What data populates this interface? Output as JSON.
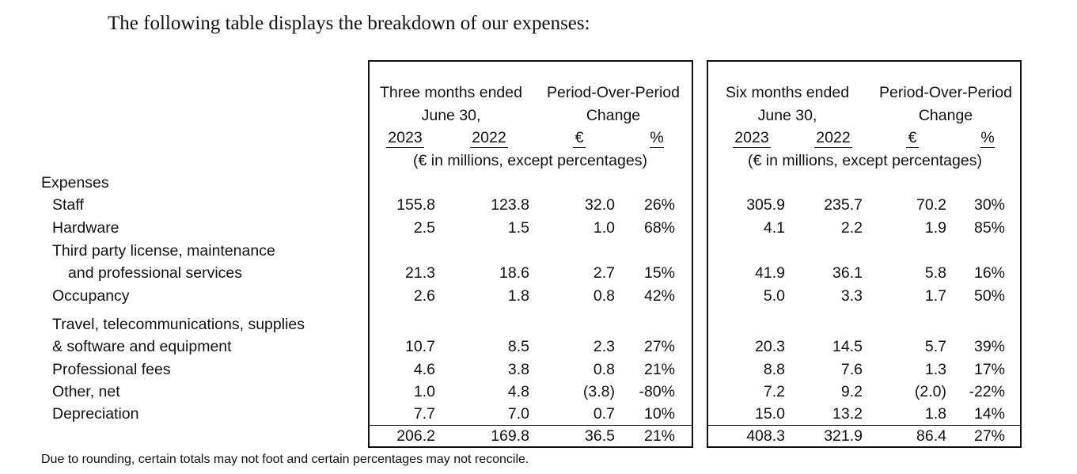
{
  "intro": "The following table displays the breakdown of our expenses:",
  "footnote": "Due to rounding, certain totals may not foot and certain percentages may not reconcile.",
  "row_labels": [
    "Expenses",
    "Staff",
    "Hardware",
    "Third party license, maintenance",
    "and professional services",
    "Occupancy",
    "Travel, telecommunications, supplies",
    "& software and equipment",
    "Professional fees",
    "Other, net",
    "Depreciation"
  ],
  "panels": [
    {
      "period_header": [
        "Three months ended",
        "June 30,"
      ],
      "change_header": [
        "Period-Over-Period",
        "Change"
      ],
      "col_heads": [
        "2023",
        "2022",
        "€",
        "%"
      ],
      "units": "(€ in millions, except percentages)",
      "rows": [
        [
          "155.8",
          "123.8",
          "32.0",
          "26%"
        ],
        [
          "2.5",
          "1.5",
          "1.0",
          "68%"
        ],
        [
          "21.3",
          "18.6",
          "2.7",
          "15%"
        ],
        [
          "2.6",
          "1.8",
          "0.8",
          "42%"
        ],
        [
          "10.7",
          "8.5",
          "2.3",
          "27%"
        ],
        [
          "4.6",
          "3.8",
          "0.8",
          "21%"
        ],
        [
          "1.0",
          "4.8",
          "(3.8)",
          "-80%"
        ],
        [
          "7.7",
          "7.0",
          "0.7",
          "10%"
        ]
      ],
      "total": [
        "206.2",
        "169.8",
        "36.5",
        "21%"
      ]
    },
    {
      "period_header": [
        "Six months ended",
        "June 30,"
      ],
      "change_header": [
        "Period-Over-Period",
        "Change"
      ],
      "col_heads": [
        "2023",
        "2022",
        "€",
        "%"
      ],
      "units": "(€ in millions, except percentages)",
      "rows": [
        [
          "305.9",
          "235.7",
          "70.2",
          "30%"
        ],
        [
          "4.1",
          "2.2",
          "1.9",
          "85%"
        ],
        [
          "41.9",
          "36.1",
          "5.8",
          "16%"
        ],
        [
          "5.0",
          "3.3",
          "1.7",
          "50%"
        ],
        [
          "20.3",
          "14.5",
          "5.7",
          "39%"
        ],
        [
          "8.8",
          "7.6",
          "1.3",
          "17%"
        ],
        [
          "7.2",
          "9.2",
          "(2.0)",
          "-22%"
        ],
        [
          "15.0",
          "13.2",
          "1.8",
          "14%"
        ]
      ],
      "total": [
        "408.3",
        "321.9",
        "86.4",
        "27%"
      ]
    }
  ]
}
